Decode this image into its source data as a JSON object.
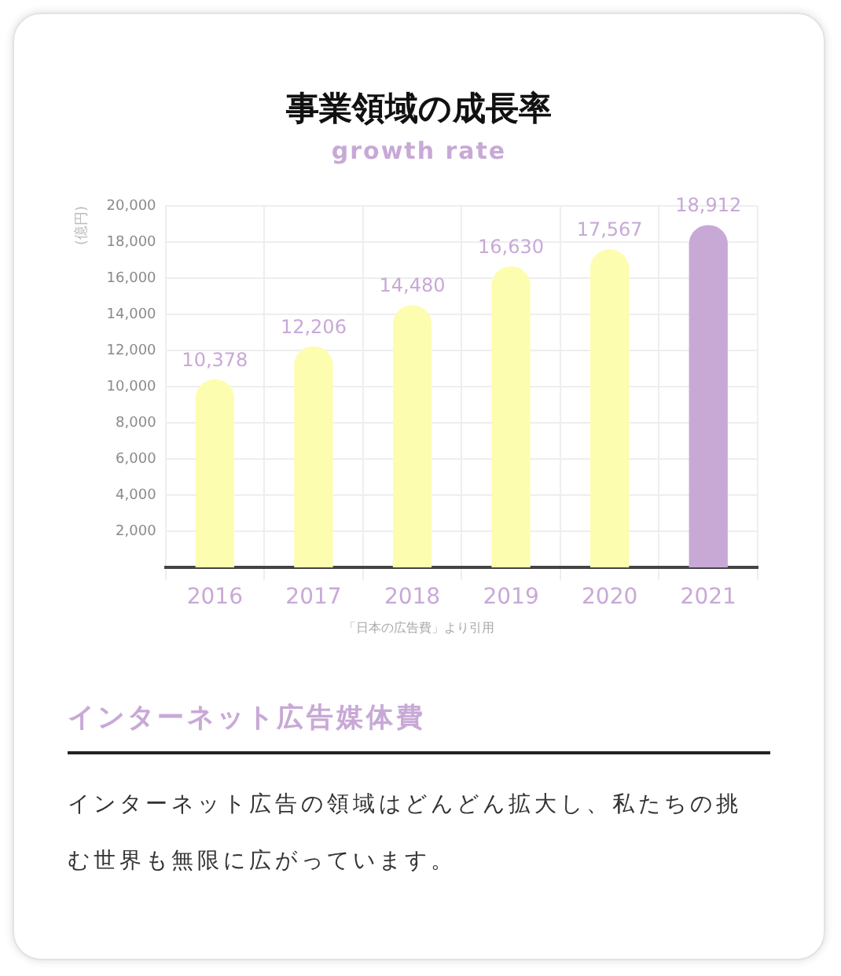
{
  "chart_data": {
    "type": "bar",
    "title": "事業領域の成長率",
    "subtitle": "growth rate",
    "ylabel": "(億円)",
    "categories": [
      "2016",
      "2017",
      "2018",
      "2019",
      "2020",
      "2021"
    ],
    "values": [
      10378,
      12206,
      14480,
      16630,
      17567,
      18912
    ],
    "colors": [
      "#fdfdb0",
      "#fdfdb0",
      "#fdfdb0",
      "#fdfdb0",
      "#fdfdb0",
      "#c8a9d6"
    ],
    "value_labels": [
      "10,378",
      "12,206",
      "14,480",
      "16,630",
      "17,567",
      "18,912"
    ],
    "ylim": [
      0,
      20000
    ],
    "yticks": [
      {
        "value": 0,
        "label": null
      },
      {
        "value": 2000,
        "label": "2,000"
      },
      {
        "value": 4000,
        "label": "4,000"
      },
      {
        "value": 6000,
        "label": "6,000"
      },
      {
        "value": 8000,
        "label": "8,000"
      },
      {
        "value": 10000,
        "label": "10,000"
      },
      {
        "value": 12000,
        "label": "12,000"
      },
      {
        "value": 14000,
        "label": "14,000"
      },
      {
        "value": 16000,
        "label": "16,000"
      },
      {
        "value": 18000,
        "label": "18,000"
      },
      {
        "value": 20000,
        "label": "20,000"
      }
    ],
    "grid": true,
    "legend": false,
    "annotations": [
      "「日本の広告費」より引用",
      "インターネット広告媒体費",
      "インターネット広告の領域はどんどん拡大し、私たちの挑む世界も無限に広がっています。"
    ]
  }
}
